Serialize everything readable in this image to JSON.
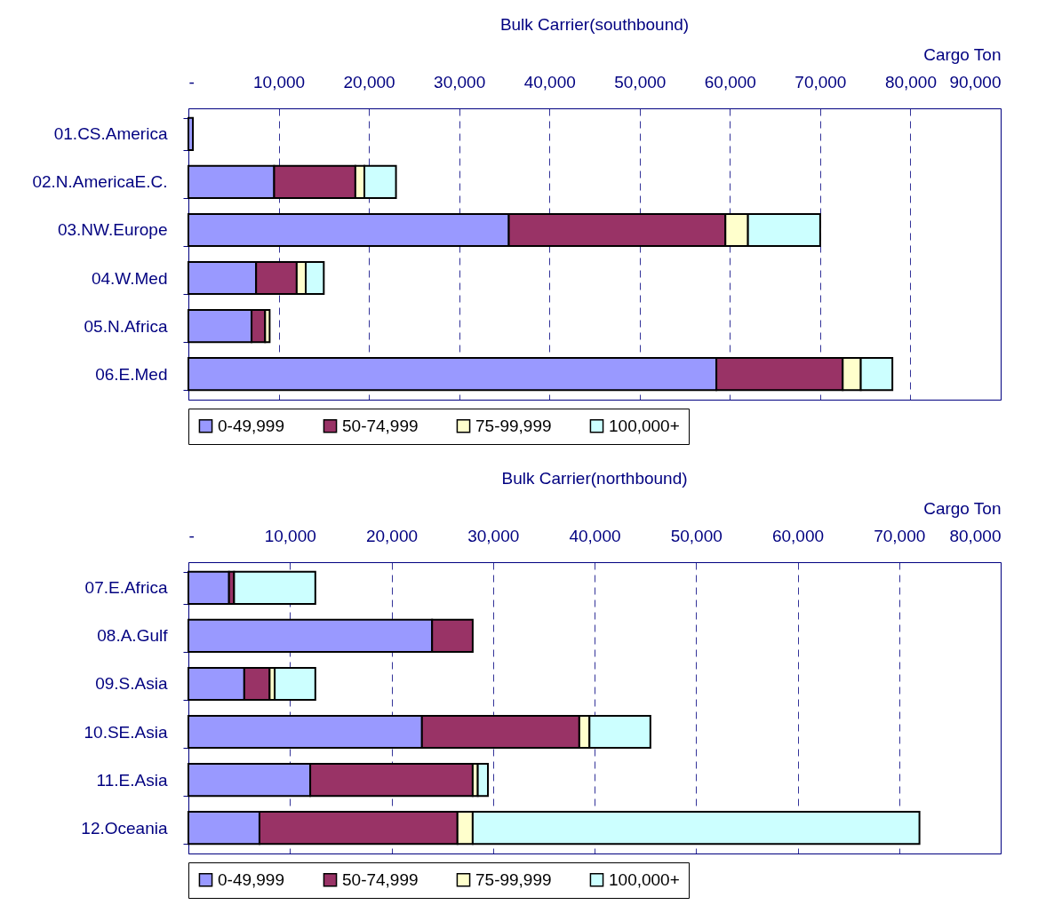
{
  "chart_data": [
    {
      "type": "bar",
      "orientation": "horizontal",
      "stacked": true,
      "title": "Bulk Carrier(southbound)",
      "xlabel": "Cargo Ton",
      "categories": [
        "01.CS.America",
        "02.N.AmericaE.C.",
        "03.NW.Europe",
        "04.W.Med",
        "05.N.Africa",
        "06.E.Med"
      ],
      "series": [
        {
          "name": "0-49,999",
          "color": "#9999ff",
          "values": [
            500,
            9500,
            35500,
            7500,
            7000,
            58500
          ]
        },
        {
          "name": "50-74,999",
          "color": "#993366",
          "values": [
            null,
            9000,
            24000,
            4500,
            1500,
            14000
          ]
        },
        {
          "name": "75-99,999",
          "color": "#ffffcc",
          "values": [
            null,
            1000,
            2500,
            1000,
            500,
            2000
          ]
        },
        {
          "name": "100,000+",
          "color": "#ccffff",
          "values": [
            null,
            3500,
            8000,
            2000,
            null,
            3500
          ]
        }
      ],
      "xlim": [
        0,
        90000
      ],
      "xticks": [
        {
          "value": 0,
          "label": "-"
        },
        {
          "value": 10000,
          "label": "10,000"
        },
        {
          "value": 20000,
          "label": "20,000"
        },
        {
          "value": 30000,
          "label": "30,000"
        },
        {
          "value": 40000,
          "label": "40,000"
        },
        {
          "value": 50000,
          "label": "50,000"
        },
        {
          "value": 60000,
          "label": "60,000"
        },
        {
          "value": 70000,
          "label": "70,000"
        },
        {
          "value": 80000,
          "label": "80,000"
        },
        {
          "value": 90000,
          "label": "90,000"
        }
      ],
      "grid": "x",
      "legend": "bottom"
    },
    {
      "type": "bar",
      "orientation": "horizontal",
      "stacked": true,
      "title": "Bulk Carrier(northbound)",
      "xlabel": "Cargo Ton",
      "categories": [
        "07.E.Africa",
        "08.A.Gulf",
        "09.S.Asia",
        "10.SE.Asia",
        "11.E.Asia",
        "12.Oceania"
      ],
      "series": [
        {
          "name": "0-49,999",
          "color": "#9999ff",
          "values": [
            4000,
            24000,
            5500,
            23000,
            12000,
            7000
          ]
        },
        {
          "name": "50-74,999",
          "color": "#993366",
          "values": [
            500,
            4000,
            2500,
            15500,
            16000,
            19500
          ]
        },
        {
          "name": "75-99,999",
          "color": "#ffffcc",
          "values": [
            null,
            null,
            500,
            1000,
            500,
            1500
          ]
        },
        {
          "name": "100,000+",
          "color": "#ccffff",
          "values": [
            8000,
            null,
            4000,
            6000,
            1000,
            44000
          ]
        }
      ],
      "xlim": [
        0,
        80000
      ],
      "xticks": [
        {
          "value": 0,
          "label": "-"
        },
        {
          "value": 10000,
          "label": "10,000"
        },
        {
          "value": 20000,
          "label": "20,000"
        },
        {
          "value": 30000,
          "label": "30,000"
        },
        {
          "value": 40000,
          "label": "40,000"
        },
        {
          "value": 50000,
          "label": "50,000"
        },
        {
          "value": 60000,
          "label": "60,000"
        },
        {
          "value": 70000,
          "label": "70,000"
        },
        {
          "value": 80000,
          "label": "80,000"
        }
      ],
      "grid": "x",
      "legend": "bottom"
    }
  ]
}
